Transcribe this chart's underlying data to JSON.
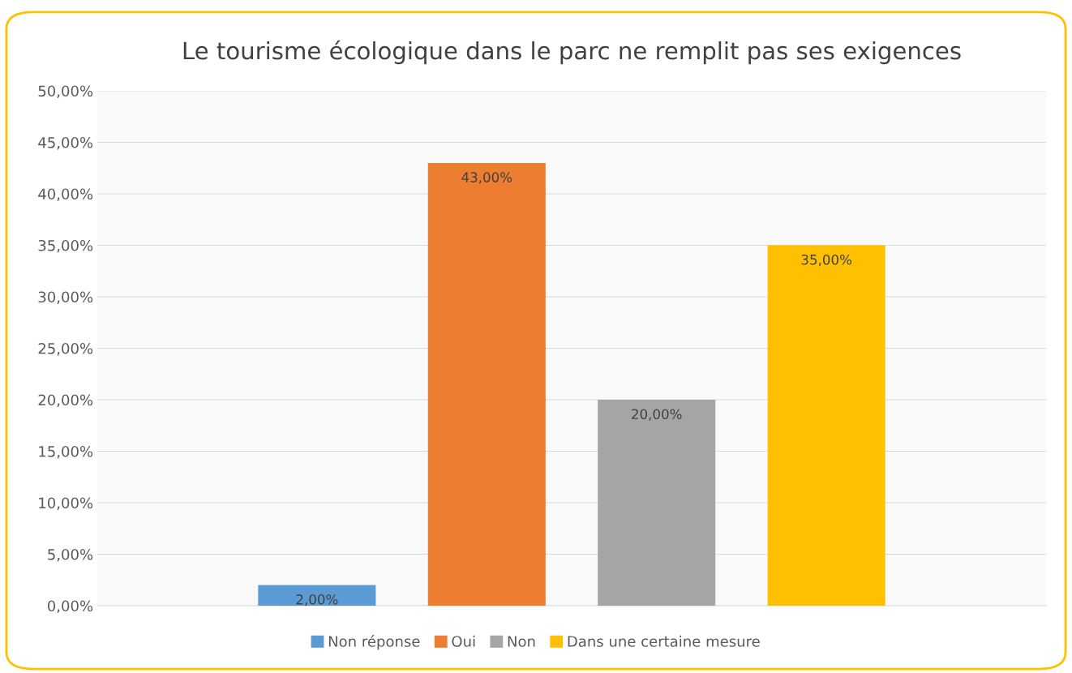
{
  "chart_data": {
    "type": "bar",
    "title": "Le tourisme écologique dans le parc ne remplit pas ses exigences",
    "categories": [
      null
    ],
    "series": [
      {
        "name": "Non réponse",
        "color": "#5b9bd5",
        "values": [
          2
        ],
        "value_labels": [
          "2,00%"
        ]
      },
      {
        "name": "Oui",
        "color": "#ed7d31",
        "values": [
          43
        ],
        "value_labels": [
          "43,00%"
        ]
      },
      {
        "name": "Non",
        "color": "#a5a5a5",
        "values": [
          20
        ],
        "value_labels": [
          "20,00%"
        ]
      },
      {
        "name": "Dans une certaine mesure",
        "color": "#ffc000",
        "values": [
          35
        ],
        "value_labels": [
          "35,00%"
        ]
      }
    ],
    "ylim": [
      0,
      50
    ],
    "yticks": [
      {
        "value": 0,
        "label": "0,00%"
      },
      {
        "value": 5,
        "label": "5,00%"
      },
      {
        "value": 10,
        "label": "10,00%"
      },
      {
        "value": 15,
        "label": "15,00%"
      },
      {
        "value": 20,
        "label": "20,00%"
      },
      {
        "value": 25,
        "label": "25,00%"
      },
      {
        "value": 30,
        "label": "30,00%"
      },
      {
        "value": 35,
        "label": "35,00%"
      },
      {
        "value": 40,
        "label": "40,00%"
      },
      {
        "value": 45,
        "label": "45,00%"
      },
      {
        "value": 50,
        "label": "50,00%"
      }
    ],
    "grid": "y",
    "legend": "bottom"
  }
}
